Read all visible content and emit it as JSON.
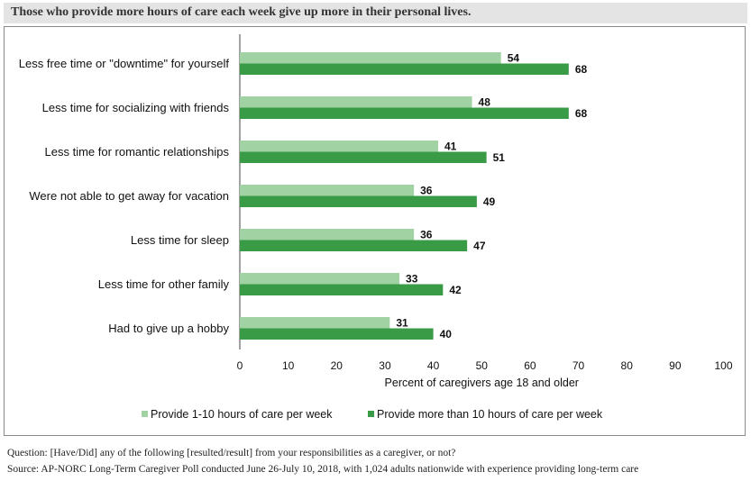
{
  "title": "Those who provide more hours of care each week give up more in their personal lives.",
  "footer": {
    "question": "Question: [Have/Did] any of the following [resulted/result] from your responsibilities as a caregiver, or not?",
    "source": "Source: AP-NORC Long-Term Caregiver Poll conducted June 26-July 10, 2018, with 1,024 adults nationwide with experience providing long-term care"
  },
  "chart_data": {
    "type": "bar",
    "orientation": "horizontal",
    "categories": [
      "Less free time or \"downtime\" for yourself",
      "Less time for socializing with friends",
      "Less time for romantic relationships",
      "Were not able to get away for vacation",
      "Less time for sleep",
      "Less time for other family",
      "Had to give up a hobby"
    ],
    "series": [
      {
        "name": "Provide 1-10 hours of care per week",
        "color": "#a1d2a3",
        "values": [
          54,
          48,
          41,
          36,
          36,
          33,
          31
        ]
      },
      {
        "name": "Provide more than 10 hours of care per week",
        "color": "#3a9b47",
        "values": [
          68,
          68,
          51,
          49,
          47,
          42,
          40
        ]
      }
    ],
    "xlabel": "Percent of caregivers age 18 and older",
    "ylabel": "",
    "xlim": [
      0,
      100
    ],
    "xticks": [
      0,
      10,
      20,
      30,
      40,
      50,
      60,
      70,
      80,
      90,
      100
    ],
    "grid": false,
    "legend_position": "bottom"
  }
}
